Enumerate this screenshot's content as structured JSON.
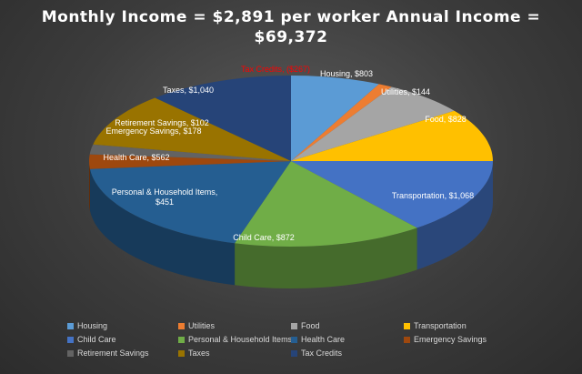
{
  "chart_data": {
    "type": "pie",
    "title_line1": "Monthly  Income = $2,891 per worker Annual  Income =",
    "title_line2": "$69,372",
    "slices": [
      {
        "name": "Housing",
        "value": 803,
        "color": "#5b9bd5",
        "label": "Housing, $803",
        "label_color": "#ffffff"
      },
      {
        "name": "Utilities",
        "value": 144,
        "color": "#ed7d31",
        "label": "Utilities, $144",
        "label_color": "#ffffff"
      },
      {
        "name": "Food",
        "value": 828,
        "color": "#a5a5a5",
        "label": "Food, $828",
        "label_color": "#ffffff"
      },
      {
        "name": "Transportation",
        "value": 1068,
        "color": "#ffc000",
        "label": "Transportation, $1,068",
        "label_color": "#ffffff"
      },
      {
        "name": "Child Care",
        "value": 872,
        "color": "#4472c4",
        "label": "Child Care, $872",
        "label_color": "#ffffff"
      },
      {
        "name": "Personal & Household Items",
        "value": 451,
        "color": "#70ad47",
        "label": "Personal & Household Items, $451",
        "label_color": "#ffffff"
      },
      {
        "name": "Health Care",
        "value": 562,
        "color": "#255e91",
        "label": "Health Care, $562",
        "label_color": "#ffffff"
      },
      {
        "name": "Emergency Savings",
        "value": 178,
        "color": "#9e480e",
        "label": "Emergency Savings, $178",
        "label_color": "#ffffff"
      },
      {
        "name": "Retirement Savings",
        "value": 102,
        "color": "#636363",
        "label": "Retirement Savings, $102",
        "label_color": "#ffffff"
      },
      {
        "name": "Taxes",
        "value": 1040,
        "color": "#997300",
        "label": "Taxes, $1,040",
        "label_color": "#ffffff"
      },
      {
        "name": "Tax Credits",
        "value": -267,
        "color": "#264478",
        "label": "Tax Credits, ($267)",
        "label_color": "#ff0000"
      }
    ],
    "legend_position": "bottom"
  }
}
